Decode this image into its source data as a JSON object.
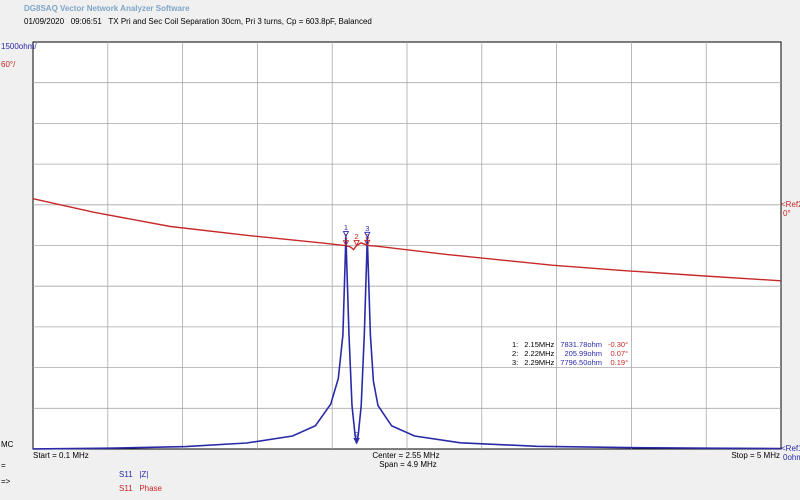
{
  "app_title": "DG8SAQ Vector Network Analyzer Software",
  "meta": {
    "date": "01/09/2020",
    "time": "09:06:51",
    "description": "TX Pri and Sec Coil Separation 30cm, Pri 3 turns, Cp = 603.8pF, Balanced"
  },
  "left_scale": {
    "top_mag": "1500ohm/",
    "top_phase": "60°/",
    "bottom": "MC"
  },
  "right_scale": {
    "ref2": "Ref2",
    "ref2_val": "0°",
    "ref1": "Ref1",
    "ref1_val": "0ohm"
  },
  "freq": {
    "start": "Start = 0.1 MHz",
    "center": "Center = 2.55 MHz",
    "span": "Span = 4.9 MHz",
    "stop": "Stop = 5 MHz"
  },
  "side_symbols": {
    "first": "=",
    "second": "=>"
  },
  "legend": [
    {
      "param": "S11",
      "name": "|Z|",
      "color": "#2a2aa8"
    },
    {
      "param": "S11",
      "name": "Phase",
      "color": "#c82828"
    }
  ],
  "markers": [
    {
      "id": "1:",
      "freq": "2.15MHz",
      "mag": "7831.78ohm",
      "phase": "-0.30°"
    },
    {
      "id": "2:",
      "freq": "2.22MHz",
      "mag": "205.99ohm",
      "phase": "0.07°"
    },
    {
      "id": "3:",
      "freq": "2.29MHz",
      "mag": "7796.50ohm",
      "phase": "0.19°"
    }
  ],
  "chart_data": {
    "type": "line",
    "xlim": [
      0.1,
      5
    ],
    "x_unit": "MHz",
    "grid": true,
    "y_left": {
      "label": "|Z|",
      "unit": "ohm",
      "per_division": 1500,
      "ref": 0,
      "lim": [
        0,
        15000
      ]
    },
    "y_right": {
      "label": "Phase",
      "unit": "deg",
      "per_division": 60,
      "ref": 0,
      "lim": [
        -300,
        300
      ]
    },
    "series": [
      {
        "name": "S11 |Z|",
        "axis": "left",
        "color": "#2a2aa8",
        "x": [
          0.1,
          0.6,
          1.1,
          1.5,
          1.8,
          1.95,
          2.05,
          2.1,
          2.13,
          2.15,
          2.17,
          2.19,
          2.21,
          2.22,
          2.23,
          2.25,
          2.27,
          2.29,
          2.31,
          2.33,
          2.36,
          2.45,
          2.6,
          2.9,
          3.4,
          4.0,
          4.5,
          5.0
        ],
        "y": [
          3,
          30,
          90,
          220,
          480,
          860,
          1650,
          2600,
          4200,
          7830,
          4200,
          1600,
          500,
          206,
          500,
          1600,
          4200,
          7800,
          4200,
          2500,
          1600,
          850,
          480,
          230,
          100,
          50,
          30,
          20
        ]
      },
      {
        "name": "S11 Phase",
        "axis": "right",
        "color": "#c82828",
        "x": [
          0.1,
          0.5,
          1.0,
          1.5,
          2.0,
          2.15,
          2.18,
          2.2,
          2.22,
          2.25,
          2.29,
          2.35,
          2.8,
          3.5,
          4.0,
          4.5,
          5.0
        ],
        "y": [
          69,
          49,
          28,
          15,
          3.5,
          -0.3,
          -2,
          -6,
          0.07,
          4,
          0.19,
          -1,
          -13,
          -29,
          -37.5,
          -45,
          -52
        ]
      }
    ]
  }
}
